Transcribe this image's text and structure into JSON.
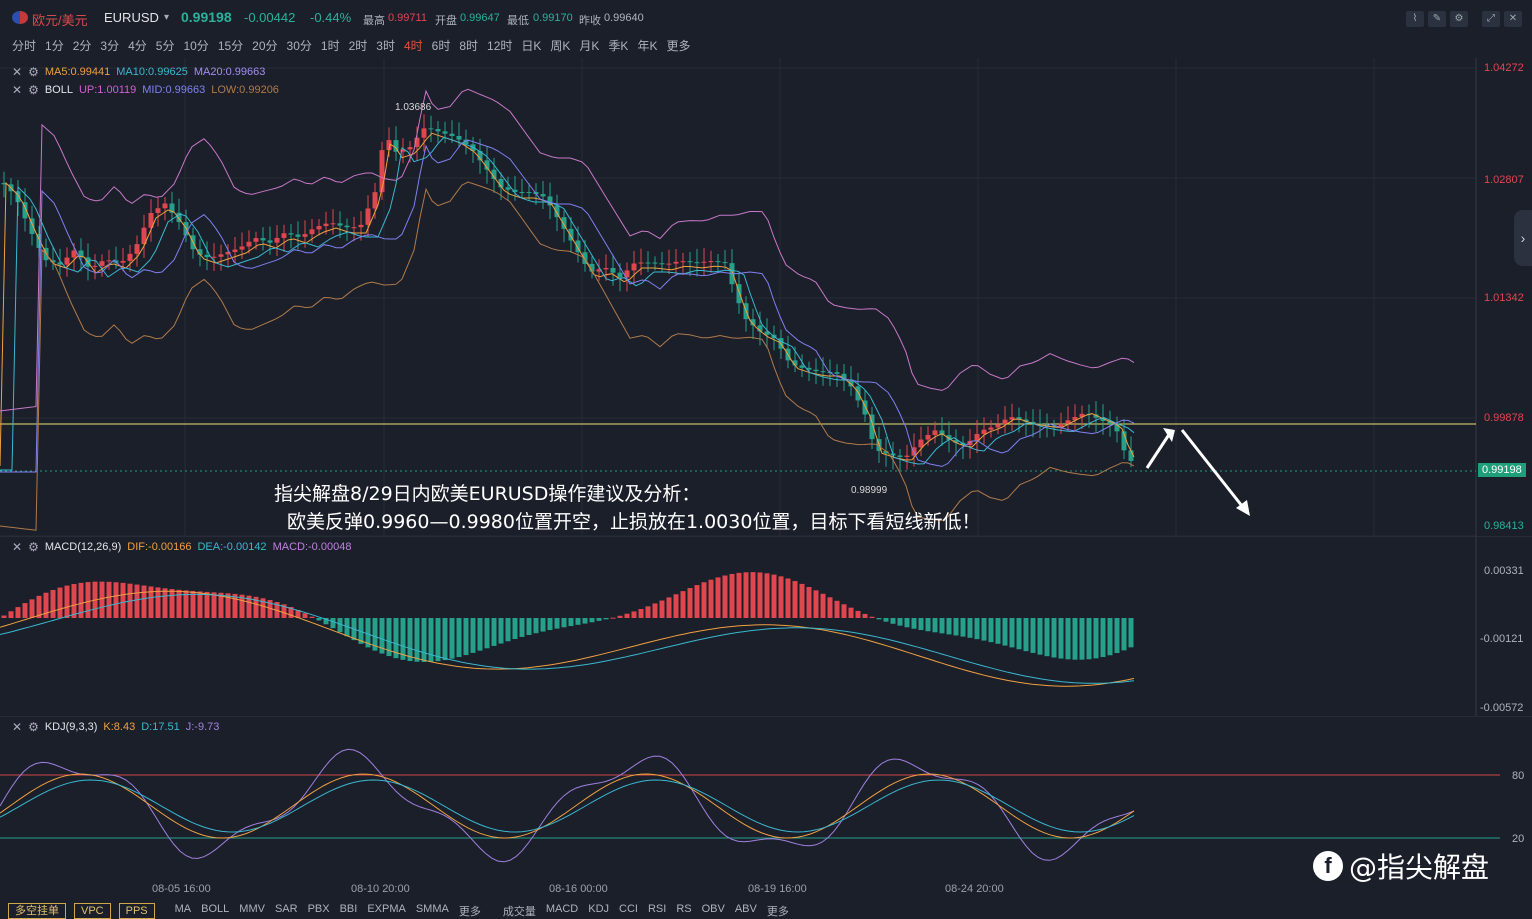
{
  "header": {
    "symbol_cn": "欧元/美元",
    "symbol_code": "EURUSD",
    "last_price": "0.99198",
    "change": "-0.00442",
    "change_pct": "-0.44%",
    "high_label": "最高",
    "high": "0.99711",
    "open_label": "开盘",
    "open": "0.99647",
    "low_label": "最低",
    "low": "0.99170",
    "prev_label": "昨收",
    "prev": "0.99640"
  },
  "timeframes": [
    "分时",
    "1分",
    "2分",
    "3分",
    "4分",
    "5分",
    "10分",
    "15分",
    "20分",
    "30分",
    "1时",
    "2时",
    "3时",
    "4时",
    "6时",
    "8时",
    "12时",
    "日K",
    "周K",
    "月K",
    "季K",
    "年K",
    "更多"
  ],
  "active_timeframe": "4时",
  "main_legend": {
    "ma": {
      "name": "",
      "ma5": "MA5:0.99441",
      "ma10": "MA10:0.99625",
      "ma20": "MA20:0.99663"
    },
    "boll": {
      "name": "BOLL",
      "up": "UP:1.00119",
      "mid": "MID:0.99663",
      "low": "LOW:0.99206"
    }
  },
  "price_axis": [
    "1.04272",
    "1.02807",
    "1.01342",
    "0.99878",
    "0.99198",
    "0.98413"
  ],
  "price_markers": {
    "high": "1.03686",
    "low": "0.98999"
  },
  "annotation": {
    "line1": "指尖解盘8/29日内欧美EURUSD操作建议及分析：",
    "line2": "欧美反弹0.9960—0.9980位置开空，止损放在1.0030位置，目标下看短线新低！"
  },
  "macd_legend": {
    "name": "MACD(12,26,9)",
    "dif": "DIF:-0.00166",
    "dea": "DEA:-0.00142",
    "macd": "MACD:-0.00048"
  },
  "macd_axis": [
    "0.00331",
    "-0.00121",
    "-0.00572"
  ],
  "kdj_legend": {
    "name": "KDJ(9,3,3)",
    "k": "K:8.43",
    "d": "D:17.51",
    "j": "J:-9.73"
  },
  "kdj_axis": [
    "80",
    "20"
  ],
  "dates": [
    "08-05 16:00",
    "08-10 20:00",
    "08-16 00:00",
    "08-19 16:00",
    "08-24 20:00"
  ],
  "bottom_buttons": [
    "多空挂单",
    "VPC",
    "PPS"
  ],
  "bottom_indicators": [
    "MA",
    "BOLL",
    "MMV",
    "SAR",
    "PBX",
    "BBI",
    "EXPMA",
    "SMMA",
    "更多",
    "成交量",
    "MACD",
    "KDJ",
    "CCI",
    "RSI",
    "RS",
    "OBV",
    "ABV",
    "更多"
  ],
  "brand": "@指尖解盘",
  "colors": {
    "bg": "#1b1f2a",
    "up": "#e0464e",
    "down": "#26a08a",
    "ma5": "#f0a040",
    "ma10": "#3ab8d0",
    "ma20": "#8080f0",
    "boll_up": "#c878c8",
    "boll_low": "#b07a4a",
    "hline": "#e8e070"
  }
}
